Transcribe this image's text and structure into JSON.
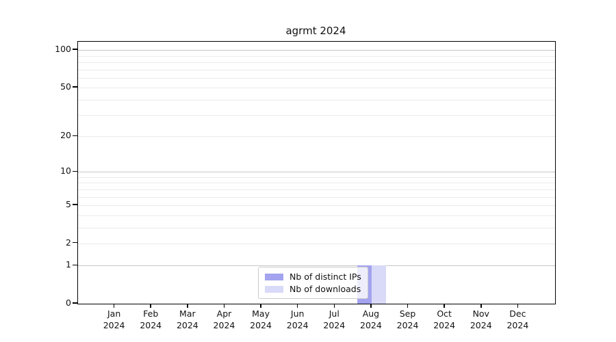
{
  "chart_data": {
    "type": "bar",
    "title": "agrmt 2024",
    "year": "2024",
    "months": [
      "Jan",
      "Feb",
      "Mar",
      "Apr",
      "May",
      "Jun",
      "Jul",
      "Aug",
      "Sep",
      "Oct",
      "Nov",
      "Dec"
    ],
    "categories": [
      "Jan 2024",
      "Feb 2024",
      "Mar 2024",
      "Apr 2024",
      "May 2024",
      "Jun 2024",
      "Jul 2024",
      "Aug 2024",
      "Sep 2024",
      "Oct 2024",
      "Nov 2024",
      "Dec 2024"
    ],
    "series": [
      {
        "name": "Nb of distinct IPs",
        "color": "#a3a3f0",
        "values": [
          0,
          0,
          0,
          0,
          0,
          0,
          0,
          1,
          0,
          0,
          0,
          0
        ]
      },
      {
        "name": "Nb of downloads",
        "color": "#d9d9f8",
        "values": [
          0,
          0,
          0,
          0,
          0,
          0,
          0,
          1,
          0,
          0,
          0,
          0
        ]
      }
    ],
    "yscale": "log1p",
    "ylim": [
      0,
      100
    ],
    "yticks": [
      0,
      1,
      2,
      5,
      10,
      20,
      50,
      100
    ],
    "major_gridlines": [
      1,
      10,
      100
    ],
    "minor_gridlines": [
      2,
      3,
      4,
      5,
      6,
      7,
      8,
      9,
      20,
      30,
      40,
      50,
      60,
      70,
      80,
      90
    ],
    "grid": "horizontal",
    "legend_position": "lower center",
    "colors": {
      "axis": "#000000",
      "grid_minor": "#ebebeb",
      "grid_major": "#c6c6c6",
      "background": "#ffffff"
    }
  }
}
